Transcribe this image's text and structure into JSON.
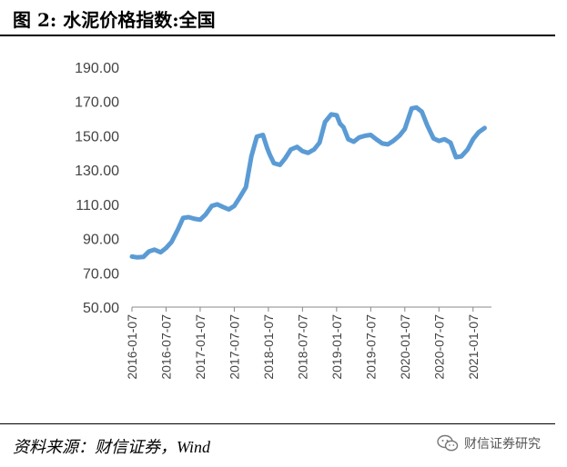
{
  "title": "图 2:  水泥价格指数:全国",
  "source": "资料来源：财信证券，Wind",
  "watermark": {
    "text": "财信证券研究",
    "icon": "wechat-icon"
  },
  "colors": {
    "line": "#5B9BD5",
    "axis": "#888888",
    "text": "#444444"
  },
  "chart_data": {
    "type": "line",
    "title": "水泥价格指数:全国",
    "xlabel": "",
    "ylabel": "",
    "ylim": [
      50,
      190
    ],
    "yticks": [
      "50.00",
      "70.00",
      "90.00",
      "110.00",
      "130.00",
      "150.00",
      "170.00",
      "190.00"
    ],
    "xticks": [
      "2016-01-07",
      "2016-07-07",
      "2017-01-07",
      "2017-07-07",
      "2018-01-07",
      "2018-07-07",
      "2019-01-07",
      "2019-07-07",
      "2020-01-07",
      "2020-07-07",
      "2021-01-07"
    ],
    "grid": false,
    "series": [
      {
        "name": "水泥价格指数:全国",
        "x": [
          2016.0,
          2016.08,
          2016.17,
          2016.25,
          2016.33,
          2016.42,
          2016.5,
          2016.58,
          2016.67,
          2016.75,
          2016.83,
          2016.92,
          2017.0,
          2017.08,
          2017.17,
          2017.25,
          2017.33,
          2017.42,
          2017.5,
          2017.58,
          2017.67,
          2017.75,
          2017.83,
          2017.92,
          2017.98,
          2018.02,
          2018.08,
          2018.17,
          2018.25,
          2018.33,
          2018.42,
          2018.5,
          2018.58,
          2018.67,
          2018.75,
          2018.83,
          2018.92,
          2019.0,
          2019.05,
          2019.1,
          2019.17,
          2019.25,
          2019.33,
          2019.42,
          2019.5,
          2019.58,
          2019.67,
          2019.75,
          2019.83,
          2019.92,
          2020.0,
          2020.05,
          2020.1,
          2020.17,
          2020.25,
          2020.33,
          2020.42,
          2020.5,
          2020.58,
          2020.67,
          2020.75,
          2020.83,
          2020.92,
          2021.0,
          2021.08,
          2021.17
        ],
        "values": [
          79.5,
          79.0,
          79.3,
          82.5,
          83.5,
          82.0,
          84.5,
          88.0,
          95.0,
          102.0,
          102.5,
          101.5,
          101.0,
          104.0,
          109.0,
          110.0,
          108.5,
          107.0,
          109.0,
          114.0,
          120.0,
          138.0,
          149.5,
          150.5,
          143.0,
          139.0,
          134.0,
          133.0,
          137.0,
          142.0,
          143.5,
          141.0,
          140.0,
          142.0,
          146.0,
          158.0,
          162.5,
          162.0,
          157.0,
          155.0,
          148.0,
          146.5,
          149.0,
          150.0,
          150.5,
          148.0,
          145.5,
          145.0,
          147.0,
          150.0,
          154.0,
          160.0,
          166.0,
          166.5,
          164.0,
          156.0,
          148.5,
          147.0,
          148.0,
          146.0,
          137.5,
          138.0,
          142.0,
          148.0,
          152.0,
          154.5
        ]
      }
    ]
  }
}
